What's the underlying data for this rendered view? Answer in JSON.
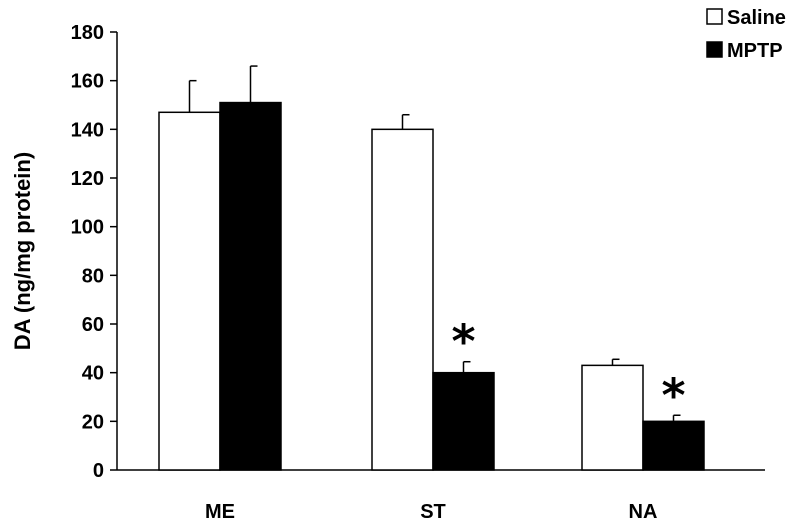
{
  "chart_data": {
    "type": "bar",
    "categories": [
      "ME",
      "ST",
      "NA"
    ],
    "series": [
      {
        "name": "Saline",
        "values": [
          147,
          140,
          43
        ],
        "errors": [
          13,
          6,
          2.5
        ],
        "color": "#ffffff",
        "stroke": "#000000"
      },
      {
        "name": "MPTP",
        "values": [
          151,
          40,
          20
        ],
        "errors": [
          15,
          4.5,
          2.5
        ],
        "color": "#000000",
        "stroke": "#000000"
      }
    ],
    "ylabel": "DA (ng/mg protein)",
    "xlabel": "",
    "ylim": [
      0,
      180
    ],
    "yticks": [
      "0",
      "20",
      "40",
      "60",
      "80",
      "100",
      "120",
      "140",
      "160",
      "180"
    ],
    "significance": [
      {
        "category": "ST",
        "series": "MPTP",
        "mark": "*"
      },
      {
        "category": "NA",
        "series": "MPTP",
        "mark": "*"
      }
    ],
    "legend_position": "top-right",
    "grid": false
  }
}
